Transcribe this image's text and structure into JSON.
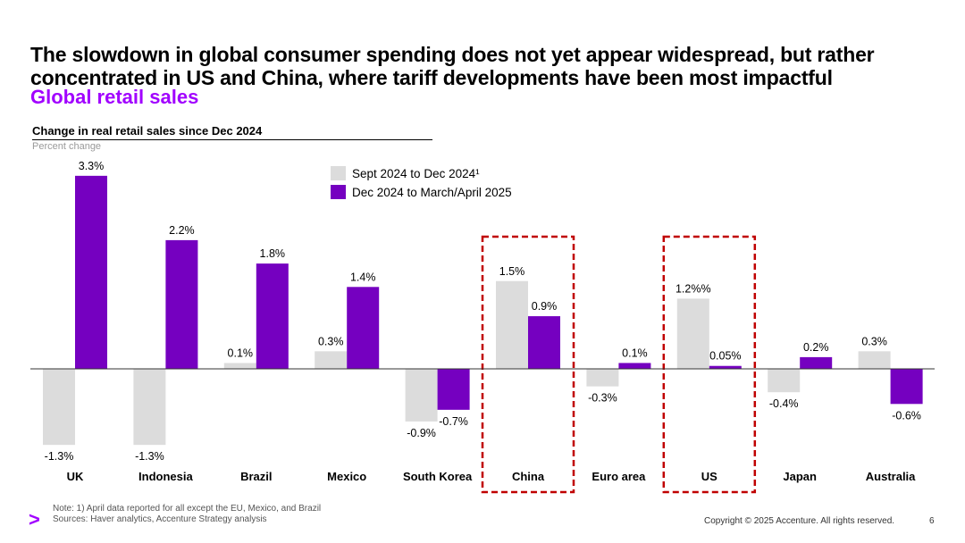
{
  "slide": {
    "title": "The slowdown in global consumer spending does not yet appear widespread, but rather concentrated in US and China, where tariff developments have been most impactful",
    "section_title": "Global retail sales",
    "chart_title": "Change in real retail sales since Dec 2024",
    "chart_subtitle": "Percent change",
    "footer_note_1": "Note: 1) April data reported for all except the EU, Mexico, and Brazil",
    "footer_note_2": "Sources: Haver analytics, Accenture Strategy analysis",
    "logo_glyph": ">",
    "copyright": "Copyright © 2025 Accenture. All rights reserved.",
    "page_number": "6"
  },
  "chart_data": {
    "type": "bar",
    "title": "Change in real retail sales since Dec 2024",
    "ylabel": "Percent change",
    "ylim": [
      -1.3,
      3.3
    ],
    "categories": [
      "UK",
      "Indonesia",
      "Brazil",
      "Mexico",
      "South Korea",
      "China",
      "Euro area",
      "US",
      "Japan",
      "Australia"
    ],
    "series": [
      {
        "name": "Sept 2024 to Dec 2024¹",
        "color": "#dcdcdc",
        "values": [
          -1.3,
          -1.3,
          0.1,
          0.3,
          -0.9,
          1.5,
          -0.3,
          1.2,
          -0.4,
          0.3
        ],
        "labels": [
          "-1.3%",
          "-1.3%",
          "0.1%",
          "0.3%",
          "-0.9%",
          "1.5%",
          "-0.3%",
          "1.2%%",
          "-0.4%",
          "0.3%"
        ]
      },
      {
        "name": "Dec 2024 to March/April 2025",
        "color": "#7500c0",
        "values": [
          3.3,
          2.2,
          1.8,
          1.4,
          -0.7,
          0.9,
          0.1,
          0.05,
          0.2,
          -0.6
        ],
        "labels": [
          "3.3%",
          "2.2%",
          "1.8%",
          "1.4%",
          "-0.7%",
          "0.9%",
          "0.1%",
          "0.05%",
          "0.2%",
          "-0.6%"
        ]
      }
    ],
    "highlighted_categories": [
      "China",
      "US"
    ],
    "highlight_color": "#c00000",
    "legend_position": "top-center"
  }
}
